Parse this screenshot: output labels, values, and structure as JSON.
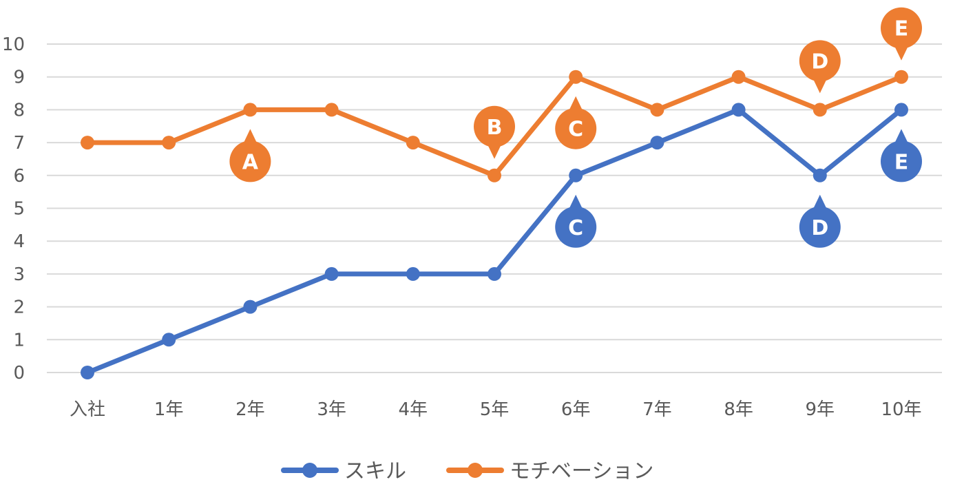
{
  "chart_data": {
    "type": "line",
    "categories": [
      "入社",
      "1年",
      "2年",
      "3年",
      "4年",
      "5年",
      "6年",
      "7年",
      "8年",
      "9年",
      "10年"
    ],
    "ylim": [
      0,
      10
    ],
    "y_ticks": [
      "0",
      "1",
      "2",
      "3",
      "4",
      "5",
      "6",
      "7",
      "8",
      "9",
      "10"
    ],
    "grid": true,
    "legend_position": "bottom",
    "series": [
      {
        "name": "スキル",
        "color": "#4472C4",
        "values": [
          0,
          1,
          2,
          3,
          3,
          3,
          6,
          7,
          8,
          6,
          8
        ]
      },
      {
        "name": "モチベーション",
        "color": "#ED7D31",
        "values": [
          7,
          7,
          8,
          8,
          7,
          6,
          9,
          8,
          9,
          8,
          9
        ]
      }
    ],
    "annotations": [
      {
        "label": "A",
        "series": "モチベーション",
        "category": "2年",
        "side": "below"
      },
      {
        "label": "B",
        "series": "モチベーション",
        "category": "5年",
        "side": "above"
      },
      {
        "label": "C",
        "series": "モチベーション",
        "category": "6年",
        "side": "below"
      },
      {
        "label": "D",
        "series": "モチベーション",
        "category": "9年",
        "side": "above"
      },
      {
        "label": "E",
        "series": "モチベーション",
        "category": "10年",
        "side": "above"
      },
      {
        "label": "C",
        "series": "スキル",
        "category": "6年",
        "side": "below"
      },
      {
        "label": "D",
        "series": "スキル",
        "category": "9年",
        "side": "below"
      },
      {
        "label": "E",
        "series": "スキル",
        "category": "10年",
        "side": "below"
      }
    ]
  }
}
